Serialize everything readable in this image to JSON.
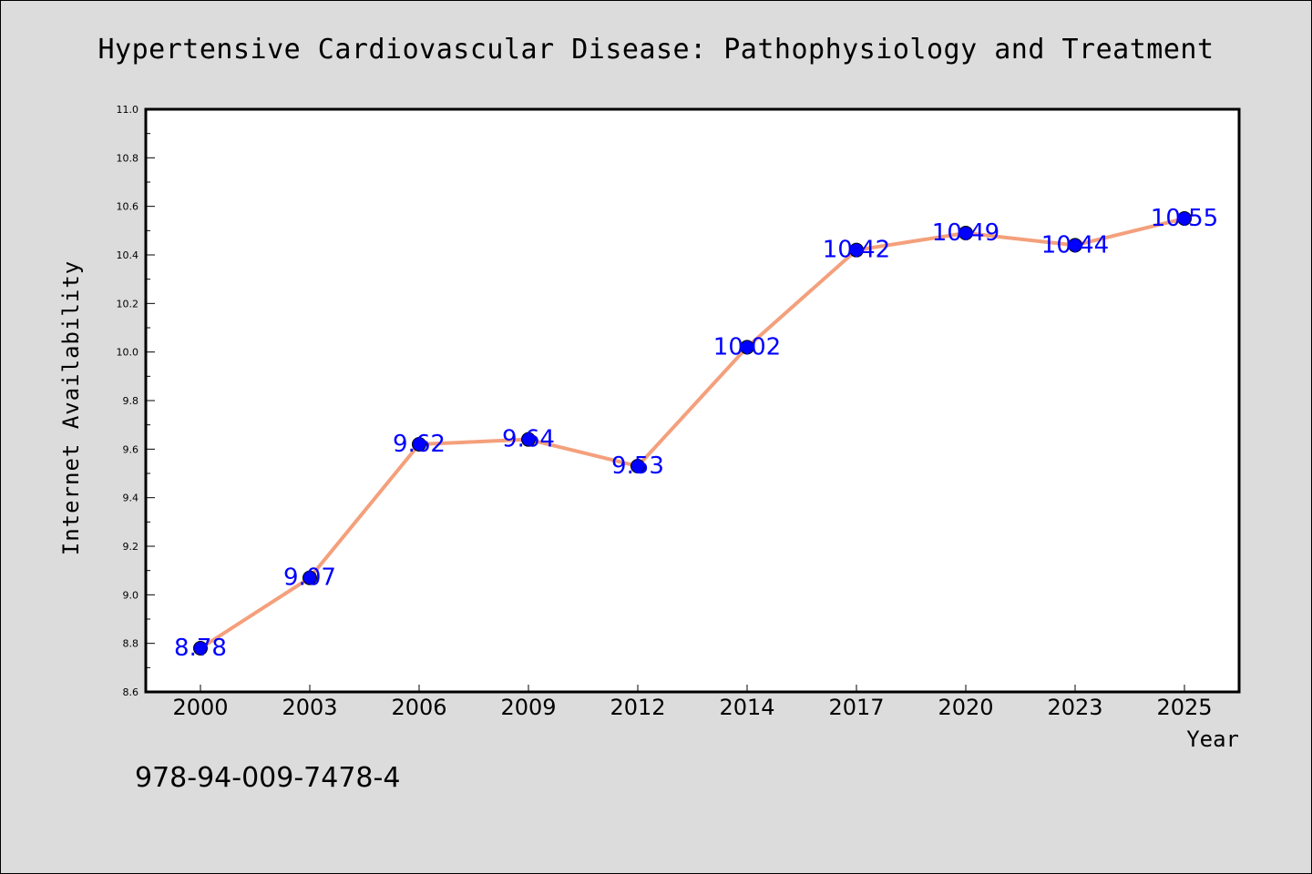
{
  "chart_data": {
    "type": "line",
    "title": "Hypertensive Cardiovascular Disease: Pathophysiology and Treatment",
    "xlabel": "Year",
    "ylabel": "Internet Availability",
    "categories": [
      "2000",
      "2003",
      "2006",
      "2009",
      "2012",
      "2014",
      "2017",
      "2020",
      "2023",
      "2025"
    ],
    "series": [
      {
        "values": [
          8.78,
          9.07,
          9.62,
          9.64,
          9.53,
          10.02,
          10.42,
          10.49,
          10.44,
          10.55
        ],
        "data_labels": [
          "8.78",
          "9.07",
          "9.62",
          "9.64",
          "9.53",
          "10.02",
          "10.42",
          "10.49",
          "10.44",
          "10.55"
        ],
        "line_color": "#f4a07c",
        "marker_color": "#0000ff"
      }
    ],
    "ylim": [
      8.6,
      11.0
    ],
    "yticks": [
      "8.6",
      "8.8",
      "9.0",
      "9.2",
      "9.4",
      "9.6",
      "9.8",
      "10.0",
      "10.2",
      "10.4",
      "10.6",
      "10.8",
      "11.0"
    ],
    "grid": false,
    "legend": "none"
  },
  "footer_text": "978-94-009-7478-4",
  "colors": {
    "background": "#dcdcdc",
    "plot_background": "#ffffff",
    "line": "#f4a07c",
    "marker": "#0000ff",
    "data_label": "#0000ff"
  }
}
